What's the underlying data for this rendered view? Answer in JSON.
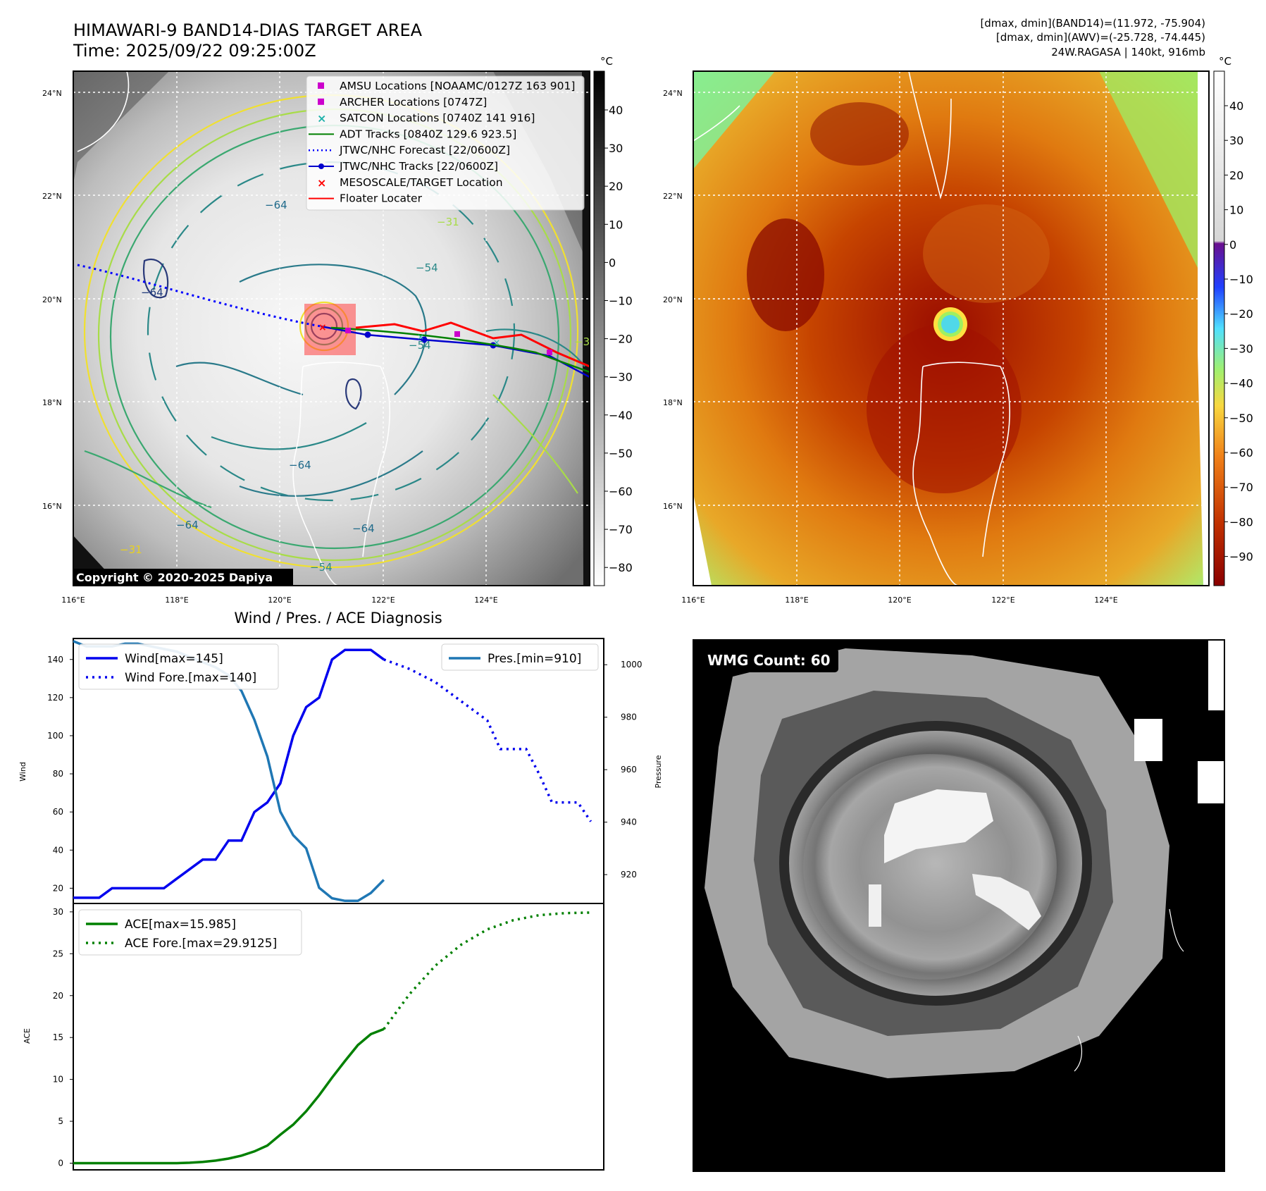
{
  "top_left": {
    "title_line1": "HIMAWARI-9 BAND14-DIAS TARGET AREA",
    "title_line2": "Time: 2025/09/22 09:25:00Z",
    "unit": "°C",
    "copyright": "Copyright © 2020-2025 Dapiya",
    "colorbar_ticks": [
      "40",
      "30",
      "20",
      "10",
      "0",
      "−10",
      "−20",
      "−30",
      "−40",
      "−50",
      "−60",
      "−70",
      "−80"
    ],
    "lat_labels": [
      "24°N",
      "22°N",
      "20°N",
      "18°N",
      "16°N"
    ],
    "lon_labels": [
      "116°E",
      "118°E",
      "120°E",
      "122°E",
      "124°E"
    ],
    "contour_labels": [
      "−31",
      "−31",
      "−54",
      "−54",
      "−64",
      "−64",
      "−64",
      "−64",
      "−31",
      "−54",
      "−64"
    ],
    "legend": [
      {
        "label": "AMSU Locations [NOAAMC/0127Z 163 901]",
        "color": "#cc00cc",
        "marker": "square"
      },
      {
        "label": "ARCHER Locations [0747Z]",
        "color": "#cc00cc",
        "marker": "square"
      },
      {
        "label": "SATCON Locations [0740Z 141 916]",
        "color": "#20b2aa",
        "marker": "x"
      },
      {
        "label": "ADT Tracks [0840Z 129.6 923.5]",
        "color": "#008000",
        "marker": "line"
      },
      {
        "label": "JTWC/NHC Forecast [22/0600Z]",
        "color": "#0000ff",
        "marker": "dotted"
      },
      {
        "label": "JTWC/NHC Tracks [22/0600Z]",
        "color": "#0000cd",
        "marker": "line-dot"
      },
      {
        "label": "MESOSCALE/TARGET Location",
        "color": "#ff0000",
        "marker": "x"
      },
      {
        "label": "Floater Locater",
        "color": "#ff0000",
        "marker": "line"
      }
    ]
  },
  "top_right": {
    "info_line1": "[dmax, dmin](BAND14)=(11.972, -75.904)",
    "info_line2": "[dmax, dmin](AWV)=(-25.728, -74.445)",
    "info_line3": "24W.RAGASA | 140kt, 916mb",
    "unit": "°C",
    "colorbar_ticks": [
      "40",
      "30",
      "20",
      "10",
      "0",
      "−10",
      "−20",
      "−30",
      "−40",
      "−50",
      "−60",
      "−70",
      "−80",
      "−90"
    ],
    "lat_labels": [
      "24°N",
      "22°N",
      "20°N",
      "18°N",
      "16°N"
    ],
    "lon_labels": [
      "116°E",
      "118°E",
      "120°E",
      "122°E",
      "124°E"
    ]
  },
  "bottom_left": {
    "title": "Wind / Pres. / ACE Diagnosis"
  },
  "bottom_right": {
    "badge": "WMG Count: 60"
  },
  "colors": {
    "wind": "#0000ee",
    "pressure": "#1f77b4",
    "ace": "#008000",
    "track_red": "#ff0000"
  },
  "chart_data": [
    {
      "type": "line",
      "name": "wind-pressure",
      "ylabel": "Wind",
      "ylabel_right": "Pressure",
      "ylim": [
        12,
        151
      ],
      "ylim_right": [
        909,
        1010
      ],
      "yticks": [
        20,
        40,
        60,
        80,
        100,
        120,
        140
      ],
      "yticks_right": [
        920,
        940,
        960,
        980,
        1000
      ],
      "xlim": [
        0,
        41
      ],
      "series": [
        {
          "name": "Wind[max=145]",
          "axis": "left",
          "style": "solid",
          "x": [
            0,
            2,
            3,
            4,
            5,
            6,
            7,
            8,
            9,
            10,
            11,
            12,
            13,
            14,
            15,
            16,
            17,
            18,
            19,
            20,
            21,
            22,
            23,
            24
          ],
          "values": [
            15,
            15,
            20,
            20,
            20,
            20,
            20,
            25,
            30,
            35,
            35,
            45,
            45,
            60,
            65,
            75,
            100,
            115,
            120,
            140,
            145,
            145,
            145,
            140
          ]
        },
        {
          "name": "Wind Fore.[max=140]",
          "axis": "left",
          "style": "dotted",
          "x": [
            24,
            26,
            28,
            30,
            32,
            33,
            34,
            35,
            36,
            37,
            38,
            39,
            40
          ],
          "values": [
            140,
            135,
            128,
            118,
            108,
            93,
            93,
            93,
            80,
            65,
            65,
            65,
            55
          ]
        },
        {
          "name": "Pres.[min=910]",
          "axis": "right",
          "style": "solid",
          "x": [
            0,
            1,
            2,
            3,
            4,
            5,
            6,
            7,
            8,
            9,
            10,
            11,
            12,
            13,
            14,
            15,
            16,
            17,
            18,
            19,
            20,
            21,
            22,
            23,
            24
          ],
          "values": [
            1009,
            1007,
            1007,
            1007,
            1008,
            1008,
            1007,
            1006,
            1005,
            1003,
            1001,
            999,
            996,
            990,
            979,
            965,
            944,
            935,
            930,
            915,
            911,
            910,
            910,
            913,
            918
          ]
        }
      ]
    },
    {
      "type": "line",
      "name": "ace",
      "ylabel": "ACE",
      "ylim": [
        -0.8,
        31
      ],
      "yticks": [
        0,
        5,
        10,
        15,
        20,
        25,
        30
      ],
      "xlim": [
        0,
        41
      ],
      "series": [
        {
          "name": "ACE[max=15.985]",
          "style": "solid",
          "x": [
            0,
            2,
            4,
            6,
            8,
            9,
            10,
            11,
            12,
            13,
            14,
            15,
            16,
            17,
            18,
            19,
            20,
            21,
            22,
            23,
            24
          ],
          "values": [
            0,
            0,
            0,
            0,
            0,
            0.05,
            0.15,
            0.3,
            0.55,
            0.9,
            1.4,
            2.1,
            3.4,
            4.6,
            6.2,
            8.1,
            10.2,
            12.2,
            14.1,
            15.4,
            16.0
          ]
        },
        {
          "name": "ACE Fore.[max=29.9125]",
          "style": "dotted",
          "x": [
            24,
            26,
            28,
            30,
            32,
            34,
            36,
            38,
            40
          ],
          "values": [
            16.0,
            20.2,
            23.6,
            26.1,
            27.9,
            29.0,
            29.6,
            29.85,
            29.9125
          ]
        }
      ]
    }
  ]
}
